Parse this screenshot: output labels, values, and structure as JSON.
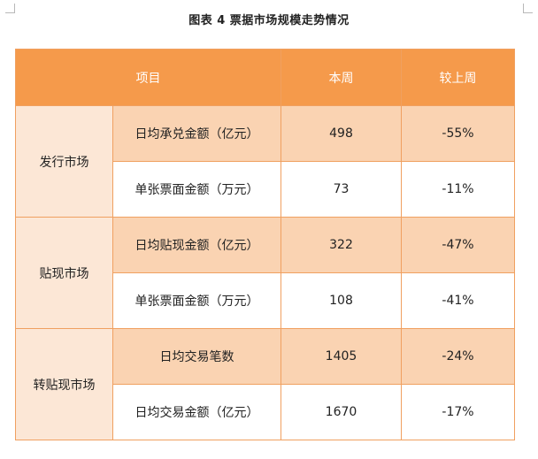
{
  "caption": "图表 4  票据市场规模走势情况",
  "table": {
    "headers": [
      "项目",
      "本周",
      "较上周"
    ],
    "groups": [
      {
        "name": "发行市场",
        "rows": [
          {
            "item": "日均承兑金额（亿元）",
            "this_week": "498",
            "change": "-55%"
          },
          {
            "item": "单张票面金额（万元）",
            "this_week": "73",
            "change": "-11%"
          }
        ]
      },
      {
        "name": "贴现市场",
        "rows": [
          {
            "item": "日均贴现金额（亿元）",
            "this_week": "322",
            "change": "-47%"
          },
          {
            "item": "单张票面金额（万元）",
            "this_week": "108",
            "change": "-41%"
          }
        ]
      },
      {
        "name": "转贴现市场",
        "rows": [
          {
            "item": "日均交易笔数",
            "this_week": "1405",
            "change": "-24%"
          },
          {
            "item": "日均交易金额（亿元）",
            "this_week": "1670",
            "change": "-17%"
          }
        ]
      }
    ]
  },
  "colors": {
    "header_bg": "#f59a4b",
    "shaded_row_bg": "#fad3b2",
    "group_bg": "#fce7d6",
    "border": "#f0a060"
  }
}
